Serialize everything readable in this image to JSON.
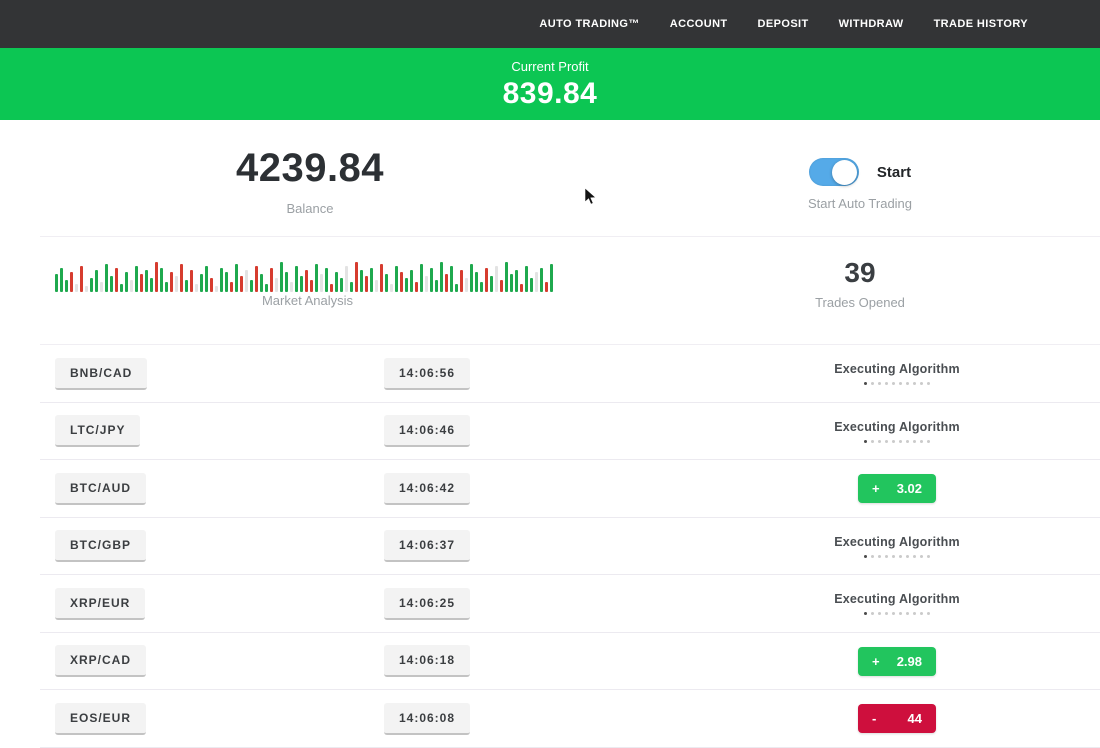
{
  "nav": {
    "items": [
      "AUTO TRADING™",
      "ACCOUNT",
      "DEPOSIT",
      "WITHDRAW",
      "TRADE HISTORY"
    ]
  },
  "banner": {
    "label": "Current Profit",
    "value": "839.84"
  },
  "stats": {
    "balance": {
      "value": "4239.84",
      "label": "Balance"
    },
    "toggle": {
      "label": "Start",
      "caption": "Start Auto Trading",
      "state": "on"
    },
    "market": {
      "label": "Market Analysis",
      "bars": [
        [
          18,
          "g"
        ],
        [
          24,
          "g"
        ],
        [
          12,
          "g"
        ],
        [
          20,
          "r"
        ],
        [
          8,
          "l"
        ],
        [
          26,
          "r"
        ],
        [
          6,
          "l"
        ],
        [
          14,
          "g"
        ],
        [
          22,
          "g"
        ],
        [
          10,
          "l"
        ],
        [
          28,
          "g"
        ],
        [
          16,
          "g"
        ],
        [
          24,
          "r"
        ],
        [
          8,
          "g"
        ],
        [
          20,
          "g"
        ],
        [
          12,
          "l"
        ],
        [
          26,
          "g"
        ],
        [
          18,
          "r"
        ],
        [
          22,
          "g"
        ],
        [
          14,
          "g"
        ],
        [
          30,
          "r"
        ],
        [
          24,
          "g"
        ],
        [
          10,
          "g"
        ],
        [
          20,
          "r"
        ],
        [
          16,
          "l"
        ],
        [
          28,
          "r"
        ],
        [
          12,
          "g"
        ],
        [
          22,
          "r"
        ],
        [
          8,
          "l"
        ],
        [
          18,
          "g"
        ],
        [
          26,
          "g"
        ],
        [
          14,
          "r"
        ],
        [
          6,
          "l"
        ],
        [
          24,
          "g"
        ],
        [
          20,
          "g"
        ],
        [
          10,
          "r"
        ],
        [
          28,
          "g"
        ],
        [
          16,
          "r"
        ],
        [
          22,
          "l"
        ],
        [
          12,
          "g"
        ],
        [
          26,
          "r"
        ],
        [
          18,
          "g"
        ],
        [
          8,
          "g"
        ],
        [
          24,
          "r"
        ],
        [
          14,
          "l"
        ],
        [
          30,
          "g"
        ],
        [
          20,
          "g"
        ],
        [
          10,
          "l"
        ],
        [
          26,
          "g"
        ],
        [
          16,
          "g"
        ],
        [
          22,
          "r"
        ],
        [
          12,
          "r"
        ],
        [
          28,
          "g"
        ],
        [
          18,
          "l"
        ],
        [
          24,
          "g"
        ],
        [
          8,
          "r"
        ],
        [
          20,
          "g"
        ],
        [
          14,
          "g"
        ],
        [
          26,
          "l"
        ],
        [
          10,
          "g"
        ],
        [
          30,
          "r"
        ],
        [
          22,
          "g"
        ],
        [
          16,
          "r"
        ],
        [
          24,
          "g"
        ],
        [
          12,
          "l"
        ],
        [
          28,
          "r"
        ],
        [
          18,
          "g"
        ],
        [
          8,
          "l"
        ],
        [
          26,
          "g"
        ],
        [
          20,
          "r"
        ],
        [
          14,
          "g"
        ],
        [
          22,
          "g"
        ],
        [
          10,
          "r"
        ],
        [
          28,
          "g"
        ],
        [
          16,
          "l"
        ],
        [
          24,
          "g"
        ],
        [
          12,
          "g"
        ],
        [
          30,
          "g"
        ],
        [
          18,
          "r"
        ],
        [
          26,
          "g"
        ],
        [
          8,
          "g"
        ],
        [
          22,
          "r"
        ],
        [
          14,
          "l"
        ],
        [
          28,
          "g"
        ],
        [
          20,
          "g"
        ],
        [
          10,
          "g"
        ],
        [
          24,
          "r"
        ],
        [
          16,
          "g"
        ],
        [
          26,
          "l"
        ],
        [
          12,
          "r"
        ],
        [
          30,
          "g"
        ],
        [
          18,
          "g"
        ],
        [
          22,
          "g"
        ],
        [
          8,
          "r"
        ],
        [
          26,
          "g"
        ],
        [
          14,
          "g"
        ],
        [
          20,
          "l"
        ],
        [
          24,
          "g"
        ],
        [
          10,
          "r"
        ],
        [
          28,
          "g"
        ]
      ]
    },
    "trades_opened": {
      "value": "39",
      "label": "Trades Opened"
    }
  },
  "trades": {
    "executing_label": "Executing Algorithm",
    "dots": {
      "total": 10,
      "active": 1
    },
    "rows": [
      {
        "pair": "BNB/CAD",
        "time": "14:06:56",
        "status": "executing"
      },
      {
        "pair": "LTC/JPY",
        "time": "14:06:46",
        "status": "executing"
      },
      {
        "pair": "BTC/AUD",
        "time": "14:06:42",
        "status": "profit",
        "sign": "+",
        "value": "3.02"
      },
      {
        "pair": "BTC/GBP",
        "time": "14:06:37",
        "status": "executing"
      },
      {
        "pair": "XRP/EUR",
        "time": "14:06:25",
        "status": "executing"
      },
      {
        "pair": "XRP/CAD",
        "time": "14:06:18",
        "status": "profit",
        "sign": "+",
        "value": "2.98"
      },
      {
        "pair": "EOS/EUR",
        "time": "14:06:08",
        "status": "loss",
        "sign": "-",
        "value": "44"
      }
    ]
  },
  "colors": {
    "nav_bg": "#333436",
    "banner_green": "#0cc653",
    "badge_green": "#22c55e",
    "badge_red": "#ce0f3d",
    "toggle_blue": "#55aae8",
    "bars": {
      "g": "#1fa94e",
      "r": "#d63c2f",
      "l": "#e3e3e3"
    }
  }
}
